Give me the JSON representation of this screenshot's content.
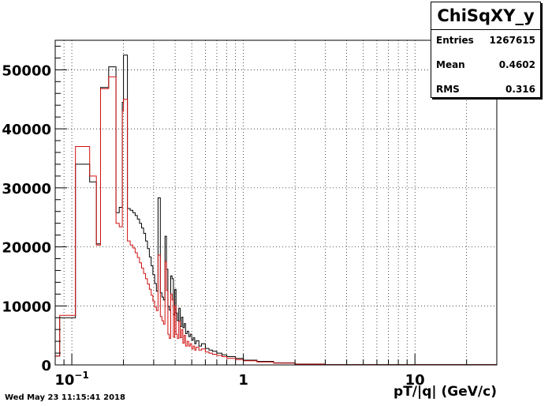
{
  "stats": {
    "title": "ChiSqXY_y",
    "rows": [
      {
        "label": "Entries",
        "value": "1267615"
      },
      {
        "label": "Mean",
        "value": "0.4602"
      },
      {
        "label": "RMS",
        "value": "0.316"
      }
    ]
  },
  "timestamp": "Wed May 23 11:15:41 2018",
  "chart_data": {
    "type": "histogram",
    "xlabel": "pT/|q| (GeV/c)",
    "ylabel": "",
    "x_scale": "log",
    "xlim": [
      0.08,
      30
    ],
    "ylim": [
      0,
      55000
    ],
    "y_ticks": [
      0,
      10000,
      20000,
      30000,
      40000,
      50000
    ],
    "x_tick_labels": [
      {
        "value": 0.1,
        "label": "10",
        "sup": "−1"
      },
      {
        "value": 1,
        "label": "1"
      },
      {
        "value": 10,
        "label": "10"
      }
    ],
    "grid": true,
    "series": [
      {
        "color": "#000000",
        "points": [
          [
            0.08,
            1500
          ],
          [
            0.085,
            8000
          ],
          [
            0.105,
            34000
          ],
          [
            0.127,
            31000
          ],
          [
            0.139,
            20500
          ],
          [
            0.147,
            47000
          ],
          [
            0.164,
            50500
          ],
          [
            0.181,
            25800
          ],
          [
            0.189,
            26700
          ],
          [
            0.197,
            44500
          ],
          [
            0.2,
            52500
          ],
          [
            0.211,
            26500
          ],
          [
            0.219,
            26200
          ],
          [
            0.227,
            25800
          ],
          [
            0.234,
            25300
          ],
          [
            0.241,
            24700
          ],
          [
            0.248,
            24000
          ],
          [
            0.255,
            23200
          ],
          [
            0.262,
            22300
          ],
          [
            0.269,
            21000
          ],
          [
            0.276,
            19700
          ],
          [
            0.283,
            18300
          ],
          [
            0.29,
            16800
          ],
          [
            0.297,
            15300
          ],
          [
            0.304,
            13800
          ],
          [
            0.311,
            12500
          ],
          [
            0.318,
            28300
          ],
          [
            0.328,
            12200
          ],
          [
            0.335,
            11500
          ],
          [
            0.342,
            11000
          ],
          [
            0.349,
            21800
          ],
          [
            0.356,
            16200
          ],
          [
            0.363,
            9900
          ],
          [
            0.37,
            9300
          ],
          [
            0.377,
            15100
          ],
          [
            0.384,
            14600
          ],
          [
            0.391,
            8500
          ],
          [
            0.398,
            12800
          ],
          [
            0.405,
            8800
          ],
          [
            0.412,
            7500
          ],
          [
            0.42,
            9600
          ],
          [
            0.428,
            6500
          ],
          [
            0.436,
            8100
          ],
          [
            0.444,
            6300
          ],
          [
            0.452,
            7000
          ],
          [
            0.46,
            5300
          ],
          [
            0.47,
            5700
          ],
          [
            0.48,
            4800
          ],
          [
            0.49,
            5200
          ],
          [
            0.5,
            4200
          ],
          [
            0.51,
            4600
          ],
          [
            0.52,
            3600
          ],
          [
            0.53,
            4100
          ],
          [
            0.55,
            3200
          ],
          [
            0.57,
            3600
          ],
          [
            0.6,
            2800
          ],
          [
            0.63,
            2500
          ],
          [
            0.66,
            2300
          ],
          [
            0.7,
            2000
          ],
          [
            0.75,
            1700
          ],
          [
            0.8,
            1400
          ],
          [
            0.9,
            1100
          ],
          [
            1.0,
            800
          ],
          [
            1.2,
            600
          ],
          [
            1.5,
            350
          ],
          [
            2.0,
            150
          ],
          [
            3.0,
            50
          ],
          [
            30,
            0
          ]
        ]
      },
      {
        "color": "#d01010",
        "points": [
          [
            0.08,
            1500
          ],
          [
            0.085,
            8400
          ],
          [
            0.105,
            37000
          ],
          [
            0.127,
            32000
          ],
          [
            0.139,
            20300
          ],
          [
            0.147,
            46800
          ],
          [
            0.164,
            48800
          ],
          [
            0.181,
            24000
          ],
          [
            0.189,
            23400
          ],
          [
            0.197,
            43000
          ],
          [
            0.2,
            45000
          ],
          [
            0.211,
            21000
          ],
          [
            0.219,
            20300
          ],
          [
            0.227,
            19800
          ],
          [
            0.234,
            19000
          ],
          [
            0.241,
            18200
          ],
          [
            0.248,
            17300
          ],
          [
            0.255,
            16400
          ],
          [
            0.262,
            15500
          ],
          [
            0.269,
            14600
          ],
          [
            0.276,
            13700
          ],
          [
            0.283,
            12800
          ],
          [
            0.29,
            11800
          ],
          [
            0.297,
            10800
          ],
          [
            0.304,
            9800
          ],
          [
            0.311,
            9200
          ],
          [
            0.318,
            18600
          ],
          [
            0.328,
            8200
          ],
          [
            0.335,
            7500
          ],
          [
            0.342,
            6900
          ],
          [
            0.349,
            17500
          ],
          [
            0.356,
            12600
          ],
          [
            0.363,
            5200
          ],
          [
            0.37,
            4500
          ],
          [
            0.377,
            12000
          ],
          [
            0.384,
            11000
          ],
          [
            0.391,
            4700
          ],
          [
            0.398,
            10000
          ],
          [
            0.405,
            5200
          ],
          [
            0.412,
            4500
          ],
          [
            0.42,
            7400
          ],
          [
            0.428,
            4600
          ],
          [
            0.436,
            6000
          ],
          [
            0.444,
            3700
          ],
          [
            0.452,
            5000
          ],
          [
            0.46,
            3200
          ],
          [
            0.47,
            4000
          ],
          [
            0.48,
            3200
          ],
          [
            0.49,
            3600
          ],
          [
            0.5,
            2700
          ],
          [
            0.51,
            3200
          ],
          [
            0.52,
            2500
          ],
          [
            0.53,
            3000
          ],
          [
            0.55,
            2500
          ],
          [
            0.57,
            2700
          ],
          [
            0.6,
            2200
          ],
          [
            0.63,
            2000
          ],
          [
            0.66,
            1800
          ],
          [
            0.7,
            1600
          ],
          [
            0.75,
            1400
          ],
          [
            0.8,
            1100
          ],
          [
            0.9,
            900
          ],
          [
            1.0,
            700
          ],
          [
            1.2,
            500
          ],
          [
            1.5,
            300
          ],
          [
            2.0,
            120
          ],
          [
            3.0,
            40
          ],
          [
            30,
            0
          ]
        ]
      }
    ]
  }
}
